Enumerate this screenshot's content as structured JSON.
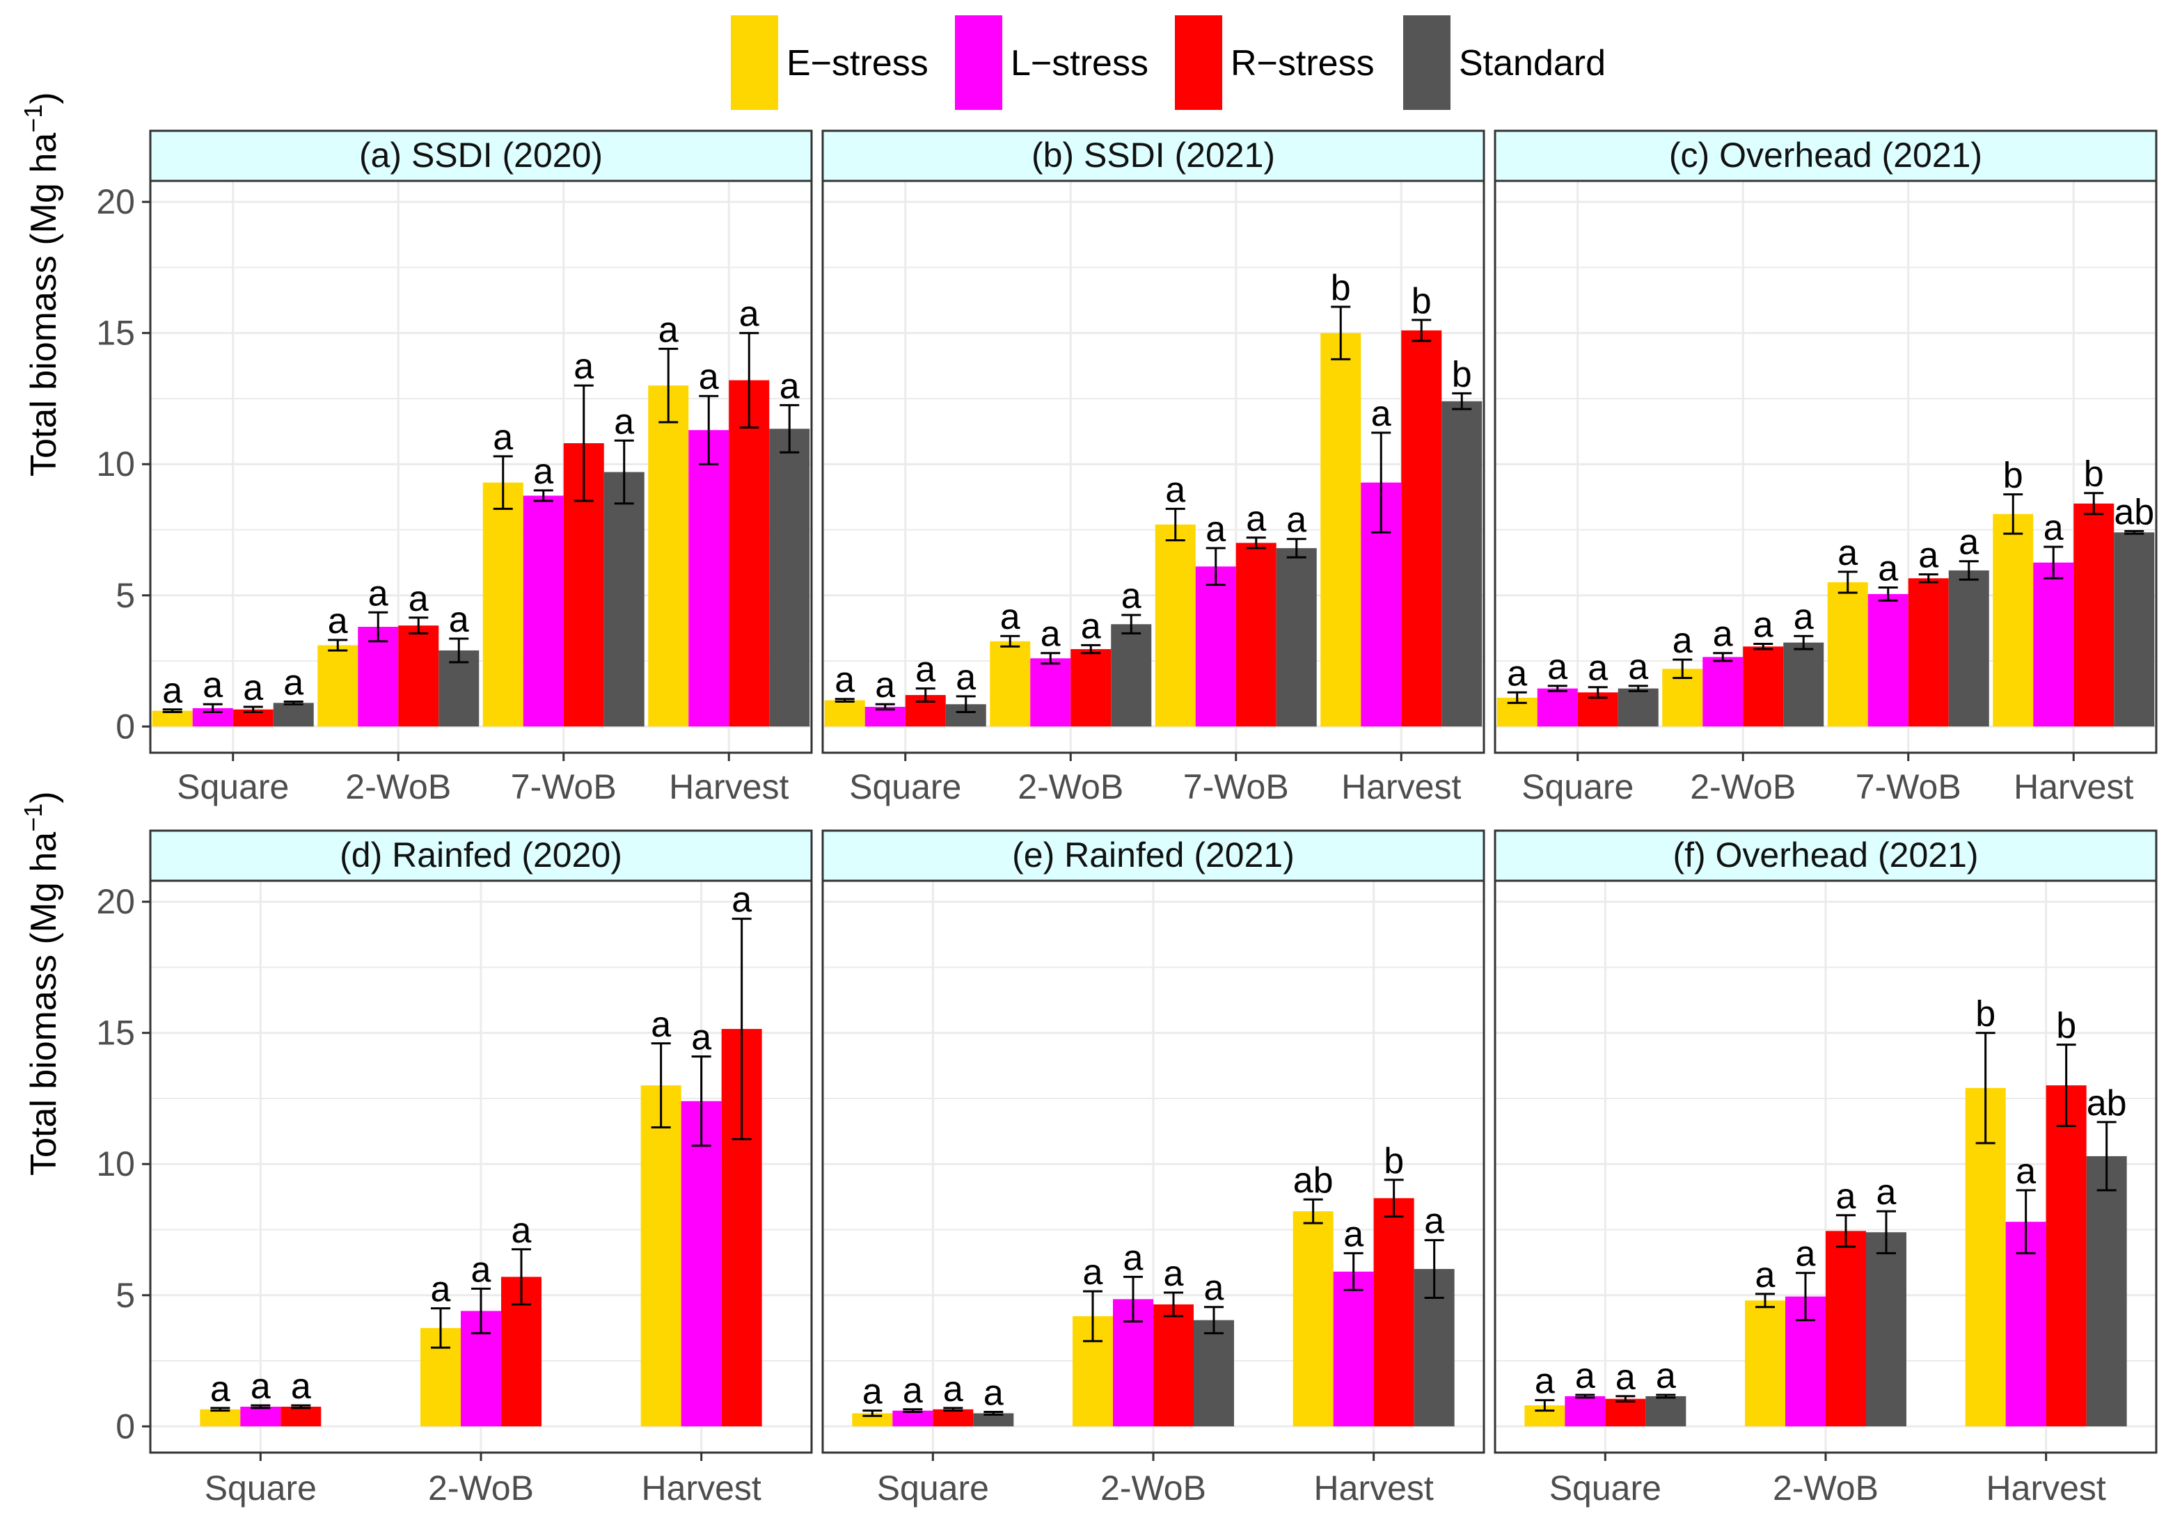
{
  "legend": {
    "items": [
      {
        "label": "E−stress",
        "color": "#FFD700"
      },
      {
        "label": "L−stress",
        "color": "#FF00FF"
      },
      {
        "label": "R−stress",
        "color": "#FF0000"
      },
      {
        "label": "Standard",
        "color": "#555555"
      }
    ]
  },
  "colors": {
    "strip_bg": "#DDFFFF",
    "grid": "#EBEBEB",
    "panel_border": "#333333"
  },
  "y_axis": {
    "label": "Total biomass (Mg ha",
    "label_superscript": "−1",
    "label_close": ")",
    "ticks": [
      0,
      5,
      10,
      15,
      20
    ],
    "ylim": [
      -1,
      20.8
    ]
  },
  "chart_data": [
    {
      "type": "bar",
      "title": "(a) SSDI (2020)",
      "ylabel": "Total biomass (Mg ha−1)",
      "categories": [
        "Square",
        "2-WoB",
        "7-WoB",
        "Harvest"
      ],
      "series": [
        {
          "name": "E−stress",
          "values": [
            0.6,
            3.1,
            9.3,
            13.0
          ],
          "errors": [
            0.05,
            0.2,
            1.0,
            1.4
          ],
          "letters": [
            "a",
            "a",
            "a",
            "a"
          ]
        },
        {
          "name": "L−stress",
          "values": [
            0.7,
            3.8,
            8.8,
            11.3
          ],
          "errors": [
            0.15,
            0.55,
            0.2,
            1.3
          ],
          "letters": [
            "a",
            "a",
            "a",
            "a"
          ]
        },
        {
          "name": "R−stress",
          "values": [
            0.65,
            3.85,
            10.8,
            13.2
          ],
          "errors": [
            0.1,
            0.3,
            2.2,
            1.8
          ],
          "letters": [
            "a",
            "a",
            "a",
            "a"
          ]
        },
        {
          "name": "Standard",
          "values": [
            0.9,
            2.9,
            9.7,
            11.35
          ],
          "errors": [
            0.05,
            0.45,
            1.2,
            0.9
          ],
          "letters": [
            "a",
            "a",
            "a",
            "a"
          ]
        }
      ]
    },
    {
      "type": "bar",
      "title": "(b) SSDI (2021)",
      "ylabel": "Total biomass (Mg ha−1)",
      "categories": [
        "Square",
        "2-WoB",
        "7-WoB",
        "Harvest"
      ],
      "series": [
        {
          "name": "E−stress",
          "values": [
            1.0,
            3.25,
            7.7,
            15.0
          ],
          "errors": [
            0.05,
            0.2,
            0.6,
            1.0
          ],
          "letters": [
            "a",
            "a",
            "a",
            "b"
          ]
        },
        {
          "name": "L−stress",
          "values": [
            0.75,
            2.6,
            6.1,
            9.3
          ],
          "errors": [
            0.1,
            0.2,
            0.7,
            1.9
          ],
          "letters": [
            "a",
            "a",
            "a",
            "a"
          ]
        },
        {
          "name": "R−stress",
          "values": [
            1.2,
            2.95,
            7.0,
            15.1
          ],
          "errors": [
            0.25,
            0.15,
            0.2,
            0.4
          ],
          "letters": [
            "a",
            "a",
            "a",
            "b"
          ]
        },
        {
          "name": "Standard",
          "values": [
            0.85,
            3.9,
            6.8,
            12.4
          ],
          "errors": [
            0.3,
            0.35,
            0.35,
            0.3
          ],
          "letters": [
            "a",
            "a",
            "a",
            "b"
          ]
        }
      ]
    },
    {
      "type": "bar",
      "title": "(c) Overhead (2021)",
      "ylabel": "Total biomass (Mg ha−1)",
      "categories": [
        "Square",
        "2-WoB",
        "7-WoB",
        "Harvest"
      ],
      "series": [
        {
          "name": "E−stress",
          "values": [
            1.1,
            2.2,
            5.5,
            8.1
          ],
          "errors": [
            0.2,
            0.35,
            0.4,
            0.75
          ],
          "letters": [
            "a",
            "a",
            "a",
            "b"
          ]
        },
        {
          "name": "L−stress",
          "values": [
            1.45,
            2.65,
            5.05,
            6.25
          ],
          "errors": [
            0.1,
            0.15,
            0.25,
            0.6
          ],
          "letters": [
            "a",
            "a",
            "a",
            "a"
          ]
        },
        {
          "name": "R−stress",
          "values": [
            1.3,
            3.05,
            5.65,
            8.5
          ],
          "errors": [
            0.2,
            0.1,
            0.15,
            0.4
          ],
          "letters": [
            "a",
            "a",
            "a",
            "b"
          ]
        },
        {
          "name": "Standard",
          "values": [
            1.45,
            3.2,
            5.95,
            7.4
          ],
          "errors": [
            0.1,
            0.25,
            0.35,
            0.05
          ],
          "letters": [
            "a",
            "a",
            "a",
            "ab"
          ]
        }
      ]
    },
    {
      "type": "bar",
      "title": "(d) Rainfed (2020)",
      "ylabel": "Total biomass (Mg ha−1)",
      "categories": [
        "Square",
        "2-WoB",
        "Harvest"
      ],
      "series": [
        {
          "name": "E−stress",
          "values": [
            0.65,
            3.75,
            13.0
          ],
          "errors": [
            0.05,
            0.75,
            1.6
          ],
          "letters": [
            "a",
            "a",
            "a"
          ]
        },
        {
          "name": "L−stress",
          "values": [
            0.75,
            4.4,
            12.4
          ],
          "errors": [
            0.05,
            0.85,
            1.7
          ],
          "letters": [
            "a",
            "a",
            "a"
          ]
        },
        {
          "name": "R−stress",
          "values": [
            0.75,
            5.7,
            15.15
          ],
          "errors": [
            0.05,
            1.05,
            4.2
          ],
          "letters": [
            "a",
            "a",
            "a"
          ]
        }
      ]
    },
    {
      "type": "bar",
      "title": "(e) Rainfed (2021)",
      "ylabel": "Total biomass (Mg ha−1)",
      "categories": [
        "Square",
        "2-WoB",
        "Harvest"
      ],
      "series": [
        {
          "name": "E−stress",
          "values": [
            0.5,
            4.2,
            8.2
          ],
          "errors": [
            0.1,
            0.95,
            0.45
          ],
          "letters": [
            "a",
            "a",
            "ab"
          ]
        },
        {
          "name": "L−stress",
          "values": [
            0.6,
            4.85,
            5.9
          ],
          "errors": [
            0.05,
            0.85,
            0.7
          ],
          "letters": [
            "a",
            "a",
            "a"
          ]
        },
        {
          "name": "R−stress",
          "values": [
            0.65,
            4.65,
            8.7
          ],
          "errors": [
            0.05,
            0.45,
            0.7
          ],
          "letters": [
            "a",
            "a",
            "b"
          ]
        },
        {
          "name": "Standard",
          "values": [
            0.5,
            4.05,
            6.0
          ],
          "errors": [
            0.05,
            0.5,
            1.1
          ],
          "letters": [
            "a",
            "a",
            "a"
          ]
        }
      ]
    },
    {
      "type": "bar",
      "title": "(f) Overhead (2021)",
      "ylabel": "Total biomass (Mg ha−1)",
      "categories": [
        "Square",
        "2-WoB",
        "Harvest"
      ],
      "series": [
        {
          "name": "E−stress",
          "values": [
            0.8,
            4.8,
            12.9
          ],
          "errors": [
            0.2,
            0.25,
            2.1
          ],
          "letters": [
            "a",
            "a",
            "b"
          ]
        },
        {
          "name": "L−stress",
          "values": [
            1.15,
            4.95,
            7.8
          ],
          "errors": [
            0.05,
            0.9,
            1.2
          ],
          "letters": [
            "a",
            "a",
            "a"
          ]
        },
        {
          "name": "R−stress",
          "values": [
            1.05,
            7.45,
            13.0
          ],
          "errors": [
            0.1,
            0.6,
            1.55
          ],
          "letters": [
            "a",
            "a",
            "b"
          ]
        },
        {
          "name": "Standard",
          "values": [
            1.15,
            7.4,
            10.3
          ],
          "errors": [
            0.05,
            0.8,
            1.3
          ],
          "letters": [
            "a",
            "a",
            "ab"
          ]
        }
      ]
    }
  ]
}
